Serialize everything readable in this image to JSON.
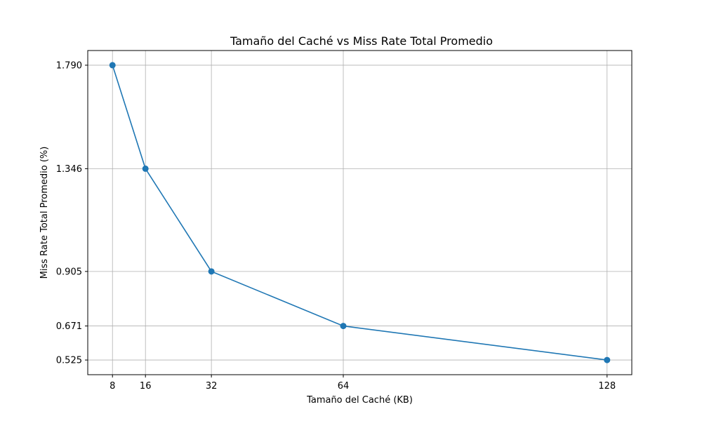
{
  "chart_data": {
    "type": "line",
    "title": "Tamaño del Caché vs Miss Rate Total Promedio",
    "xlabel": "Tamaño del Caché (KB)",
    "ylabel": "Miss Rate Total Promedio (%)",
    "x": [
      8,
      16,
      32,
      64,
      128
    ],
    "series": [
      {
        "values": [
          1.79,
          1.346,
          0.905,
          0.671,
          0.525
        ],
        "color": "#1f77b4"
      }
    ],
    "xticks": [
      8,
      16,
      32,
      64,
      128
    ],
    "xtick_labels": [
      "8",
      "16",
      "32",
      "64",
      "128"
    ],
    "yticks": [
      0.525,
      0.671,
      0.905,
      1.346,
      1.79
    ],
    "ytick_labels": [
      "0.525",
      "0.671",
      "0.905",
      "1.346",
      "1.790"
    ],
    "xlim": [
      2,
      134
    ],
    "ylim": [
      0.462,
      1.853
    ],
    "grid": true,
    "marker": "circle"
  }
}
